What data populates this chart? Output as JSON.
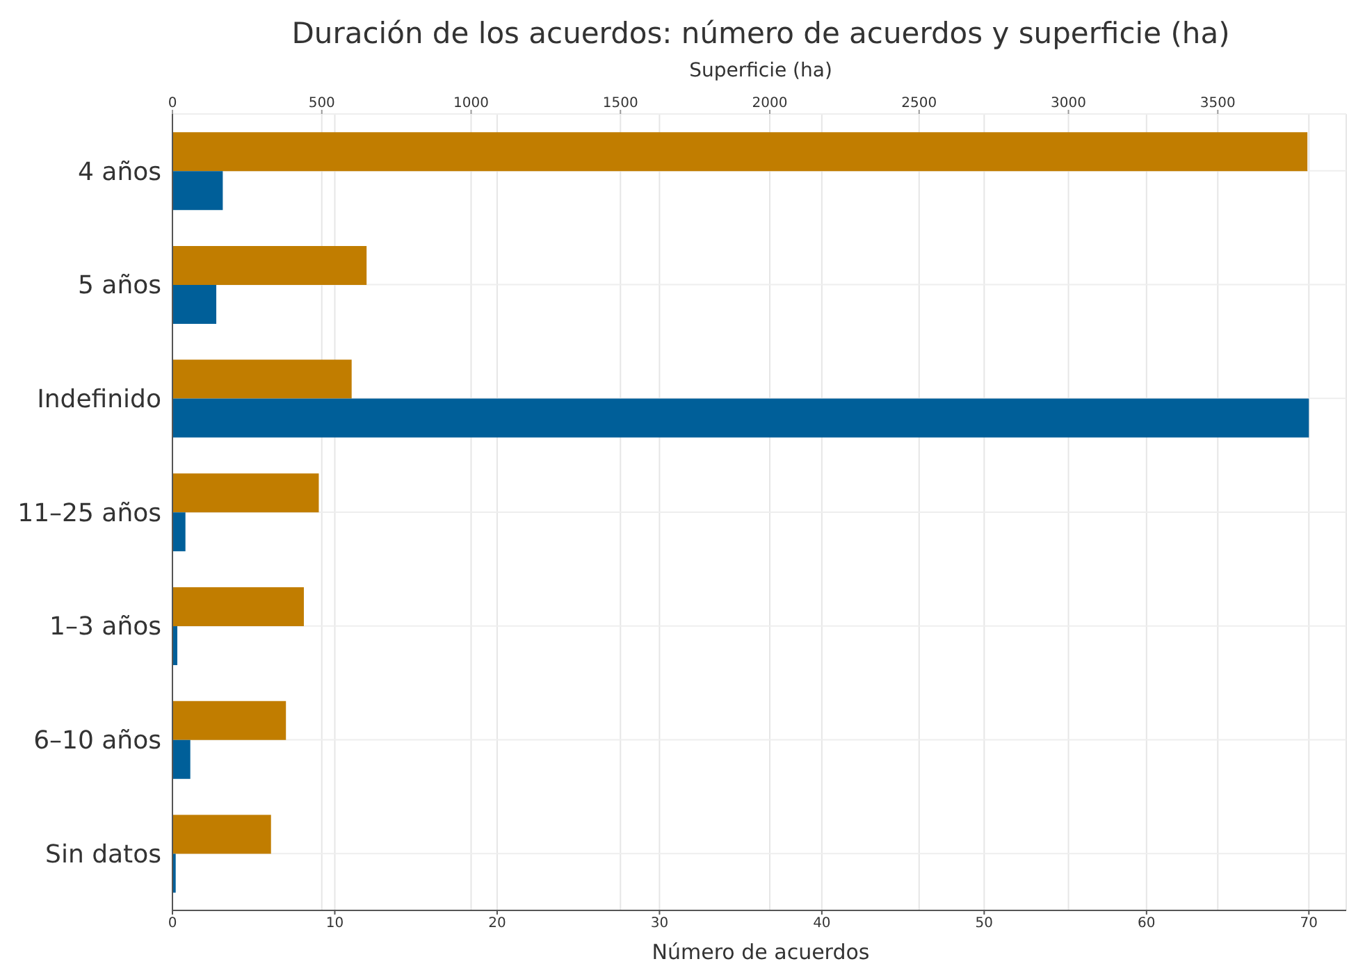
{
  "chart_data": {
    "type": "bar",
    "orientation": "horizontal",
    "title": "Duración de los acuerdos: número de acuerdos y superficie (ha)",
    "xlabel": "Número de acuerdos",
    "x2label": "Superficie (ha)",
    "categories": [
      "4 años",
      "5 años",
      "Indefinido",
      "11–25 años",
      "1–3 años",
      "6–10 años",
      "Sin datos"
    ],
    "series": [
      {
        "color": "#c17d00",
        "axis": "x2",
        "values": [
          3800,
          650,
          600,
          490,
          440,
          380,
          330
        ]
      },
      {
        "color": "#005f99",
        "values": [
          3.1,
          2.7,
          70,
          0.8,
          0.3,
          1.1,
          0.2
        ]
      }
    ],
    "xlim": [
      0,
      72.3
    ],
    "xticks": [
      0,
      10,
      20,
      30,
      40,
      50,
      60,
      70
    ],
    "x2lim": [
      0,
      3930
    ],
    "x2ticks": [
      0,
      500,
      1000,
      1500,
      2000,
      2500,
      3000,
      3500
    ],
    "grid": true
  }
}
